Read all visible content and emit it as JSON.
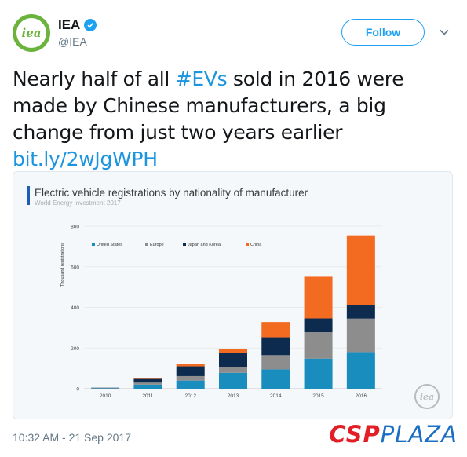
{
  "account": {
    "display_name": "IEA",
    "handle": "@IEA",
    "avatar_text": "iea",
    "follow_label": "Follow"
  },
  "tweet": {
    "text_before": "Nearly half of all ",
    "hashtag": "#EVs",
    "text_after": " sold in 2016 were made by Chinese manufacturers, a big change from just two years earlier",
    "link": "bit.ly/2wJgWPH",
    "timestamp": "10:32 AM - 21 Sep 2017"
  },
  "watermark": {
    "part1": "CSP",
    "part2": "PLAZA"
  },
  "chart_logo_text": "iea",
  "chart_data": {
    "type": "bar",
    "stacked": true,
    "title": "Electric vehicle registrations by nationality of manufacturer",
    "subtitle": "World Energy Investment 2017",
    "ylabel": "Thousand registrations",
    "xlabel": "",
    "ylim": [
      0,
      800
    ],
    "yticks": [
      0,
      200,
      400,
      600,
      800
    ],
    "legend_position": "top-left",
    "categories": [
      "2010",
      "2011",
      "2012",
      "2013",
      "2014",
      "2015",
      "2016"
    ],
    "series": [
      {
        "name": "United States",
        "color": "#1a8dbf",
        "values": [
          2,
          20,
          40,
          78,
          95,
          148,
          180
        ]
      },
      {
        "name": "Europe",
        "color": "#8d8d8d",
        "values": [
          2,
          10,
          22,
          28,
          70,
          130,
          165
        ]
      },
      {
        "name": "Japan and Korea",
        "color": "#0d2b4e",
        "values": [
          1,
          18,
          48,
          70,
          88,
          68,
          65
        ]
      },
      {
        "name": "China",
        "color": "#f26b21",
        "values": [
          0,
          2,
          10,
          18,
          75,
          205,
          345
        ]
      }
    ]
  }
}
